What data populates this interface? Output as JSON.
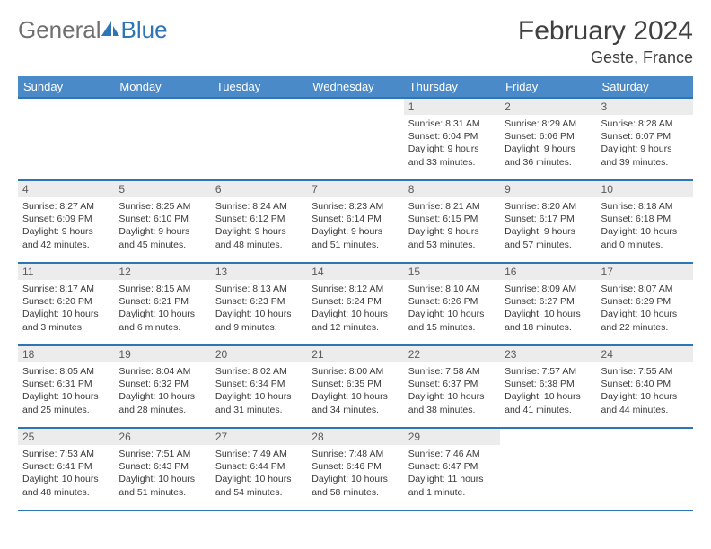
{
  "header": {
    "logo_general": "General",
    "logo_blue": "Blue",
    "month_title": "February 2024",
    "location": "Geste, France"
  },
  "colors": {
    "header_bg": "#4a8ac9",
    "border": "#2e75b6",
    "daynum_bg": "#ececec",
    "text": "#3a3a3a",
    "logo_gray": "#6f6f6f"
  },
  "days_of_week": [
    "Sunday",
    "Monday",
    "Tuesday",
    "Wednesday",
    "Thursday",
    "Friday",
    "Saturday"
  ],
  "weeks": [
    [
      {
        "n": "",
        "lines": []
      },
      {
        "n": "",
        "lines": []
      },
      {
        "n": "",
        "lines": []
      },
      {
        "n": "",
        "lines": []
      },
      {
        "n": "1",
        "lines": [
          "Sunrise: 8:31 AM",
          "Sunset: 6:04 PM",
          "Daylight: 9 hours",
          "and 33 minutes."
        ]
      },
      {
        "n": "2",
        "lines": [
          "Sunrise: 8:29 AM",
          "Sunset: 6:06 PM",
          "Daylight: 9 hours",
          "and 36 minutes."
        ]
      },
      {
        "n": "3",
        "lines": [
          "Sunrise: 8:28 AM",
          "Sunset: 6:07 PM",
          "Daylight: 9 hours",
          "and 39 minutes."
        ]
      }
    ],
    [
      {
        "n": "4",
        "lines": [
          "Sunrise: 8:27 AM",
          "Sunset: 6:09 PM",
          "Daylight: 9 hours",
          "and 42 minutes."
        ]
      },
      {
        "n": "5",
        "lines": [
          "Sunrise: 8:25 AM",
          "Sunset: 6:10 PM",
          "Daylight: 9 hours",
          "and 45 minutes."
        ]
      },
      {
        "n": "6",
        "lines": [
          "Sunrise: 8:24 AM",
          "Sunset: 6:12 PM",
          "Daylight: 9 hours",
          "and 48 minutes."
        ]
      },
      {
        "n": "7",
        "lines": [
          "Sunrise: 8:23 AM",
          "Sunset: 6:14 PM",
          "Daylight: 9 hours",
          "and 51 minutes."
        ]
      },
      {
        "n": "8",
        "lines": [
          "Sunrise: 8:21 AM",
          "Sunset: 6:15 PM",
          "Daylight: 9 hours",
          "and 53 minutes."
        ]
      },
      {
        "n": "9",
        "lines": [
          "Sunrise: 8:20 AM",
          "Sunset: 6:17 PM",
          "Daylight: 9 hours",
          "and 57 minutes."
        ]
      },
      {
        "n": "10",
        "lines": [
          "Sunrise: 8:18 AM",
          "Sunset: 6:18 PM",
          "Daylight: 10 hours",
          "and 0 minutes."
        ]
      }
    ],
    [
      {
        "n": "11",
        "lines": [
          "Sunrise: 8:17 AM",
          "Sunset: 6:20 PM",
          "Daylight: 10 hours",
          "and 3 minutes."
        ]
      },
      {
        "n": "12",
        "lines": [
          "Sunrise: 8:15 AM",
          "Sunset: 6:21 PM",
          "Daylight: 10 hours",
          "and 6 minutes."
        ]
      },
      {
        "n": "13",
        "lines": [
          "Sunrise: 8:13 AM",
          "Sunset: 6:23 PM",
          "Daylight: 10 hours",
          "and 9 minutes."
        ]
      },
      {
        "n": "14",
        "lines": [
          "Sunrise: 8:12 AM",
          "Sunset: 6:24 PM",
          "Daylight: 10 hours",
          "and 12 minutes."
        ]
      },
      {
        "n": "15",
        "lines": [
          "Sunrise: 8:10 AM",
          "Sunset: 6:26 PM",
          "Daylight: 10 hours",
          "and 15 minutes."
        ]
      },
      {
        "n": "16",
        "lines": [
          "Sunrise: 8:09 AM",
          "Sunset: 6:27 PM",
          "Daylight: 10 hours",
          "and 18 minutes."
        ]
      },
      {
        "n": "17",
        "lines": [
          "Sunrise: 8:07 AM",
          "Sunset: 6:29 PM",
          "Daylight: 10 hours",
          "and 22 minutes."
        ]
      }
    ],
    [
      {
        "n": "18",
        "lines": [
          "Sunrise: 8:05 AM",
          "Sunset: 6:31 PM",
          "Daylight: 10 hours",
          "and 25 minutes."
        ]
      },
      {
        "n": "19",
        "lines": [
          "Sunrise: 8:04 AM",
          "Sunset: 6:32 PM",
          "Daylight: 10 hours",
          "and 28 minutes."
        ]
      },
      {
        "n": "20",
        "lines": [
          "Sunrise: 8:02 AM",
          "Sunset: 6:34 PM",
          "Daylight: 10 hours",
          "and 31 minutes."
        ]
      },
      {
        "n": "21",
        "lines": [
          "Sunrise: 8:00 AM",
          "Sunset: 6:35 PM",
          "Daylight: 10 hours",
          "and 34 minutes."
        ]
      },
      {
        "n": "22",
        "lines": [
          "Sunrise: 7:58 AM",
          "Sunset: 6:37 PM",
          "Daylight: 10 hours",
          "and 38 minutes."
        ]
      },
      {
        "n": "23",
        "lines": [
          "Sunrise: 7:57 AM",
          "Sunset: 6:38 PM",
          "Daylight: 10 hours",
          "and 41 minutes."
        ]
      },
      {
        "n": "24",
        "lines": [
          "Sunrise: 7:55 AM",
          "Sunset: 6:40 PM",
          "Daylight: 10 hours",
          "and 44 minutes."
        ]
      }
    ],
    [
      {
        "n": "25",
        "lines": [
          "Sunrise: 7:53 AM",
          "Sunset: 6:41 PM",
          "Daylight: 10 hours",
          "and 48 minutes."
        ]
      },
      {
        "n": "26",
        "lines": [
          "Sunrise: 7:51 AM",
          "Sunset: 6:43 PM",
          "Daylight: 10 hours",
          "and 51 minutes."
        ]
      },
      {
        "n": "27",
        "lines": [
          "Sunrise: 7:49 AM",
          "Sunset: 6:44 PM",
          "Daylight: 10 hours",
          "and 54 minutes."
        ]
      },
      {
        "n": "28",
        "lines": [
          "Sunrise: 7:48 AM",
          "Sunset: 6:46 PM",
          "Daylight: 10 hours",
          "and 58 minutes."
        ]
      },
      {
        "n": "29",
        "lines": [
          "Sunrise: 7:46 AM",
          "Sunset: 6:47 PM",
          "Daylight: 11 hours",
          "and 1 minute."
        ]
      },
      {
        "n": "",
        "lines": []
      },
      {
        "n": "",
        "lines": []
      }
    ]
  ]
}
